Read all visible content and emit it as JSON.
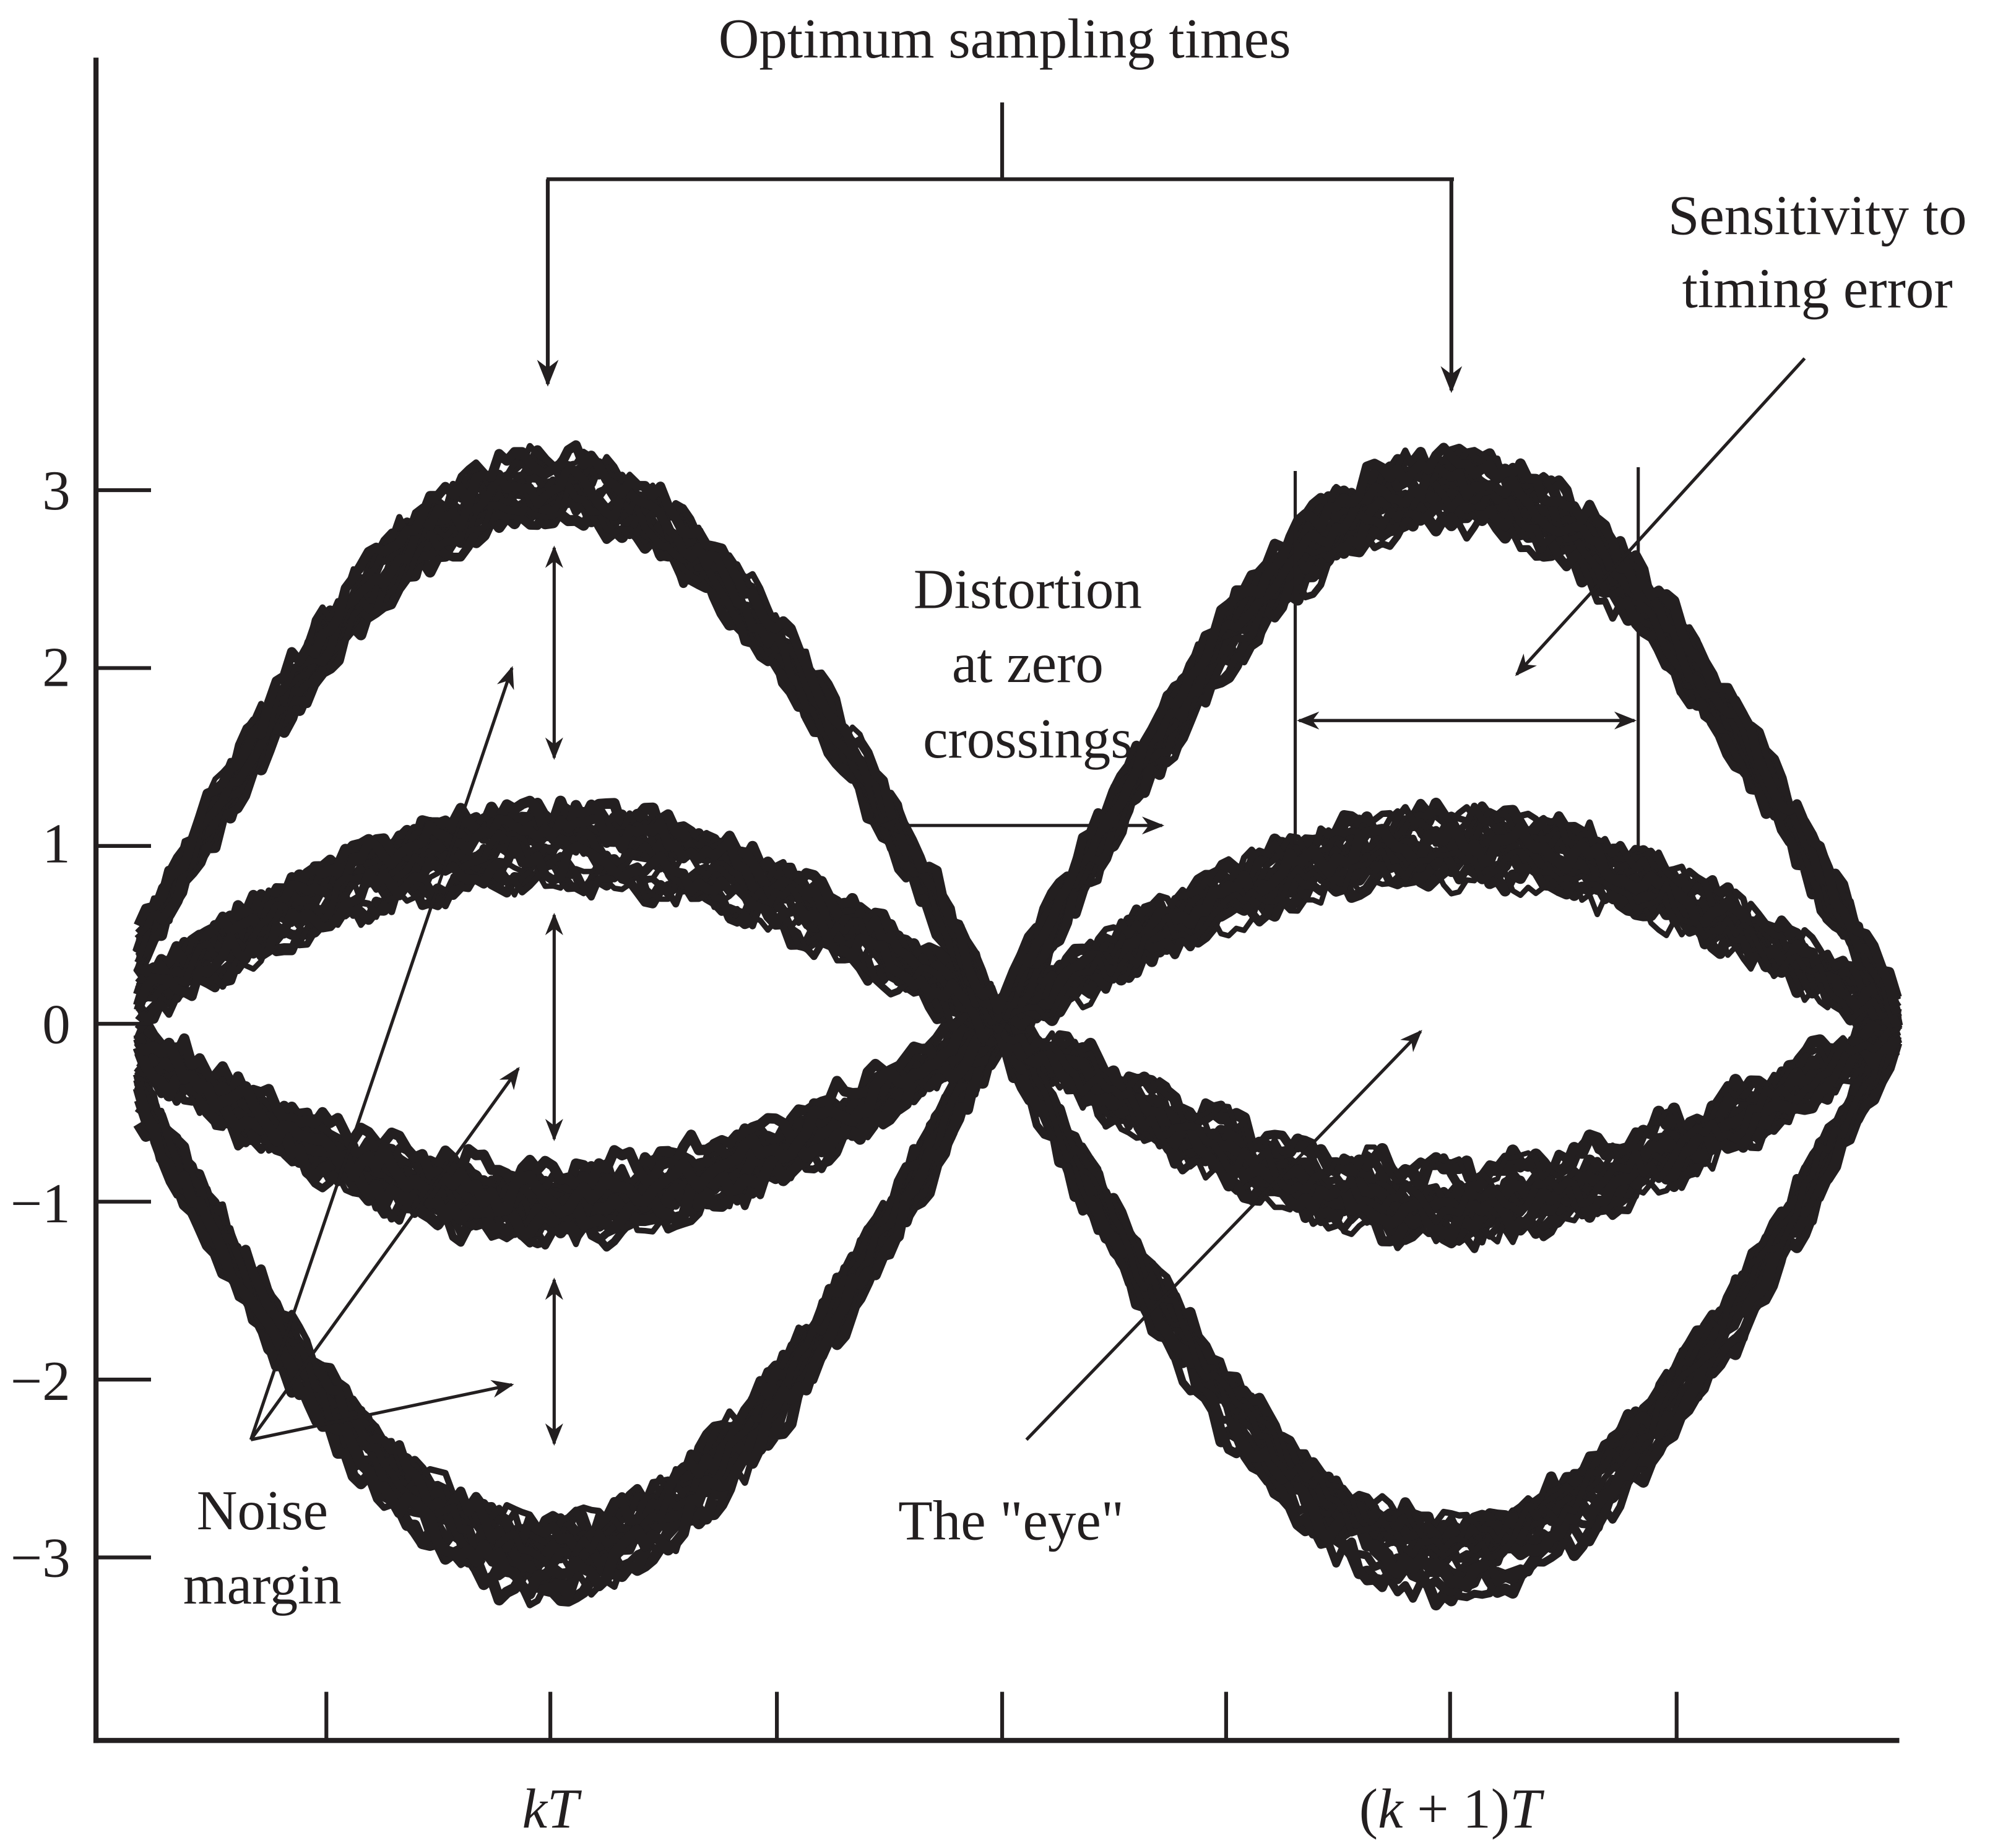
{
  "title": "Optimum sampling times",
  "annotations": {
    "sensitivity": [
      "Sensitivity to",
      "timing error"
    ],
    "distortion": [
      "Distortion",
      "at zero",
      "crossings"
    ],
    "noise_margin": [
      "Noise",
      "margin"
    ],
    "eye": "The \"eye\""
  },
  "y_axis": {
    "tick_labels": [
      "3",
      "2",
      "1",
      "0",
      "−1",
      "−2",
      "−3"
    ],
    "range": [
      -3.5,
      3.5
    ]
  },
  "x_axis": {
    "tick_labels": {
      "kT_italic": "kT",
      "k1T_open": "(",
      "k1T_k": "k",
      "k1T_mid": " + 1)",
      "k1T_T": "T"
    }
  },
  "eye_levels": [
    -3,
    -1,
    1,
    3
  ],
  "colors": {
    "ink": "#231f20",
    "background": "#ffffff"
  }
}
